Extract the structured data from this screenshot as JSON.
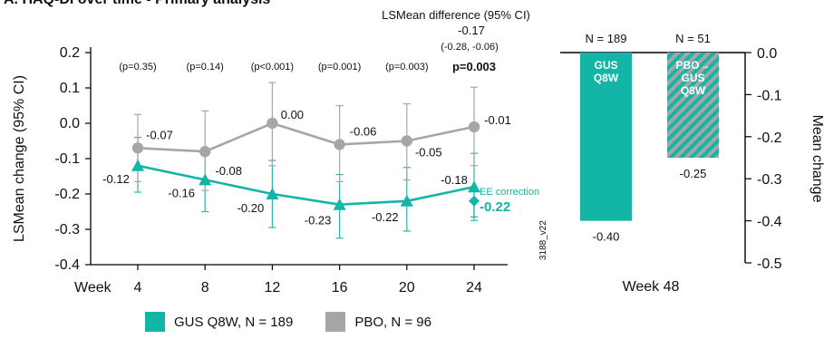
{
  "title": "A. HAQ-DI over time - Primary analysis",
  "colors": {
    "gus": "#13b5a6",
    "pbo": "#a6a6a6",
    "axis": "#000000"
  },
  "chart_data": [
    {
      "type": "line",
      "ylabel": "LSMean change (95% CI)",
      "xlabel": "Week",
      "ylim": [
        -0.4,
        0.2
      ],
      "yticks": [
        "0.2",
        "0.1",
        "0.0",
        "-0.1",
        "-0.2",
        "-0.3",
        "-0.4"
      ],
      "x": [
        4,
        8,
        12,
        16,
        20,
        24
      ],
      "x_tick_labels": [
        "4",
        "8",
        "12",
        "16",
        "20",
        "24"
      ],
      "pvalues": [
        "(p=0.35)",
        "(p=0.14)",
        "(p<0.001)",
        "(p=0.001)",
        "(p=0.003)",
        "p=0.003"
      ],
      "series": [
        {
          "name": "GUS Q8W, N = 189",
          "values": [
            -0.12,
            -0.16,
            -0.2,
            -0.23,
            -0.22,
            -0.18
          ],
          "labels": [
            "-0.12",
            "-0.16",
            "-0.20",
            "-0.23",
            "-0.22",
            "-0.18"
          ],
          "ci_low": [
            -0.195,
            -0.25,
            -0.295,
            -0.325,
            -0.305,
            -0.275
          ],
          "ci_high": [
            -0.04,
            -0.07,
            -0.105,
            -0.145,
            -0.125,
            -0.085
          ]
        },
        {
          "name": "PBO, N = 96",
          "values": [
            -0.07,
            -0.08,
            0.0,
            -0.06,
            -0.05,
            -0.01
          ],
          "labels": [
            "-0.07",
            "-0.08",
            "0.00",
            "-0.06",
            "-0.05",
            "-0.01"
          ],
          "ci_low": [
            -0.165,
            -0.19,
            -0.12,
            -0.165,
            -0.16,
            -0.12
          ],
          "ci_high": [
            0.025,
            0.035,
            0.115,
            0.05,
            0.055,
            0.102
          ]
        }
      ],
      "lsmean_header": "LSMean difference (95% CI)",
      "lsmean_value": "-0.17",
      "lsmean_ci": "(-0.28, -0.06)",
      "ee_correction": {
        "label": "EE correction",
        "value_label": "-0.22",
        "value": -0.22,
        "ci_low": -0.265,
        "ci_high": -0.175
      },
      "code": "3188_v22"
    },
    {
      "type": "bar",
      "categories": [
        "GUS Q8W",
        "PBO→ GUS Q8W"
      ],
      "bar_text": [
        [
          "GUS",
          "Q8W"
        ],
        [
          "PBO→",
          "GUS",
          "Q8W"
        ]
      ],
      "n_labels": [
        "N = 189",
        "N = 51"
      ],
      "values": [
        -0.4,
        -0.25
      ],
      "value_labels": [
        "-0.40",
        "-0.25"
      ],
      "ylim": [
        -0.5,
        0.0
      ],
      "yticks": [
        "0.0",
        "-0.1",
        "-0.2",
        "-0.3",
        "-0.4",
        "-0.5"
      ],
      "ylabel": "Mean change",
      "xlabel": "Week 48"
    }
  ],
  "legend": [
    {
      "label": "GUS Q8W, N = 189",
      "color": "#13b5a6"
    },
    {
      "label": "PBO, N = 96",
      "color": "#a6a6a6"
    }
  ]
}
